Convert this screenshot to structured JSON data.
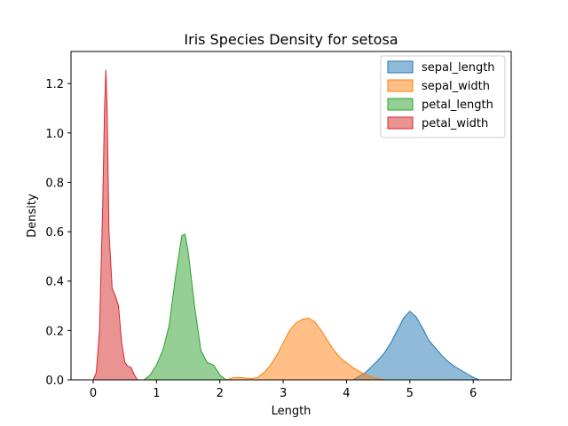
{
  "chart_data": {
    "type": "area",
    "title": "Iris Species Density for setosa",
    "xlabel": "Length",
    "ylabel": "Density",
    "xlim": [
      -0.35,
      6.6
    ],
    "ylim": [
      0,
      1.33
    ],
    "xticks": [
      0,
      1,
      2,
      3,
      4,
      5,
      6
    ],
    "yticks": [
      0.0,
      0.2,
      0.4,
      0.6,
      0.8,
      1.0,
      1.2
    ],
    "legend_position": "top-right",
    "grid": false,
    "series": [
      {
        "name": "sepal_length",
        "color": "#1f77b4",
        "x": [
          4.1,
          4.3,
          4.5,
          4.6,
          4.7,
          4.8,
          4.9,
          5.0,
          5.1,
          5.2,
          5.3,
          5.4,
          5.5,
          5.6,
          5.7,
          5.8,
          5.9,
          6.0,
          6.1
        ],
        "y": [
          0.0,
          0.03,
          0.08,
          0.11,
          0.15,
          0.2,
          0.25,
          0.278,
          0.255,
          0.21,
          0.16,
          0.13,
          0.1,
          0.075,
          0.055,
          0.04,
          0.025,
          0.01,
          0.0
        ]
      },
      {
        "name": "sepal_width",
        "color": "#ff7f0e",
        "x": [
          2.1,
          2.2,
          2.3,
          2.5,
          2.6,
          2.7,
          2.8,
          2.9,
          3.0,
          3.1,
          3.2,
          3.3,
          3.4,
          3.5,
          3.6,
          3.7,
          3.8,
          3.9,
          4.0,
          4.1,
          4.2,
          4.3,
          4.4,
          4.5,
          4.6
        ],
        "y": [
          0.0,
          0.008,
          0.01,
          0.005,
          0.01,
          0.03,
          0.06,
          0.1,
          0.15,
          0.2,
          0.23,
          0.245,
          0.25,
          0.235,
          0.2,
          0.16,
          0.12,
          0.09,
          0.07,
          0.05,
          0.035,
          0.022,
          0.012,
          0.005,
          0.0
        ]
      },
      {
        "name": "petal_length",
        "color": "#2ca02c",
        "x": [
          0.8,
          0.9,
          1.0,
          1.1,
          1.2,
          1.3,
          1.4,
          1.45,
          1.5,
          1.6,
          1.7,
          1.8,
          1.9,
          2.0,
          2.1
        ],
        "y": [
          0.0,
          0.02,
          0.06,
          0.12,
          0.22,
          0.42,
          0.585,
          0.59,
          0.52,
          0.3,
          0.12,
          0.07,
          0.06,
          0.02,
          0.0
        ]
      },
      {
        "name": "petal_width",
        "color": "#d62728",
        "x": [
          0.0,
          0.05,
          0.1,
          0.15,
          0.18,
          0.2,
          0.22,
          0.25,
          0.3,
          0.35,
          0.4,
          0.45,
          0.5,
          0.55,
          0.6,
          0.65,
          0.7
        ],
        "y": [
          0.0,
          0.03,
          0.2,
          0.7,
          1.1,
          1.255,
          1.1,
          0.6,
          0.37,
          0.34,
          0.3,
          0.15,
          0.07,
          0.055,
          0.05,
          0.02,
          0.0
        ]
      }
    ]
  }
}
